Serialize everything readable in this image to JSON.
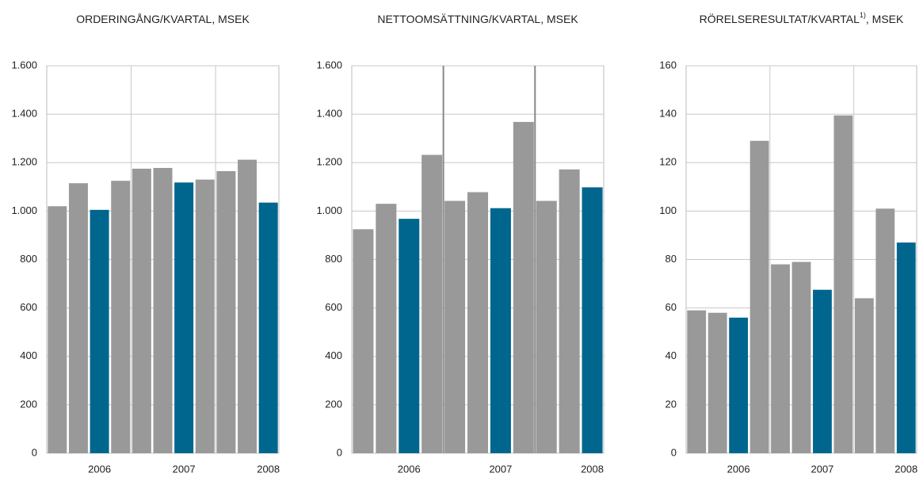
{
  "chart_data": [
    {
      "type": "bar",
      "title": "ORDERINGÅNG/KVARTAL, MSEK",
      "categories": [
        null,
        null,
        "2006",
        null,
        null,
        null,
        "2007",
        null,
        null,
        null,
        "2008"
      ],
      "values": [
        1020,
        1115,
        1005,
        1125,
        1175,
        1178,
        1118,
        1130,
        1165,
        1212,
        1035
      ],
      "colors": [
        "#999999",
        "#999999",
        "#00668e",
        "#999999",
        "#999999",
        "#999999",
        "#00668e",
        "#999999",
        "#999999",
        "#999999",
        "#00668e"
      ],
      "ylim": [
        0,
        1600
      ],
      "yticks": [
        0,
        200,
        400,
        600,
        800,
        {
          "value": 1000,
          "label": "1.000"
        },
        {
          "value": 1200,
          "label": "1.200"
        },
        {
          "value": 1400,
          "label": "1.400"
        },
        {
          "value": 1600,
          "label": "1.600"
        }
      ],
      "grid": true
    },
    {
      "type": "bar",
      "title": "NETTOOMSÄTTNING/KVARTAL, MSEK",
      "categories": [
        null,
        null,
        "2006",
        null,
        null,
        null,
        "2007",
        null,
        null,
        null,
        "2008"
      ],
      "values": [
        925,
        1030,
        968,
        1232,
        1042,
        1078,
        1012,
        1368,
        1042,
        1172,
        1098
      ],
      "colors": [
        "#999999",
        "#999999",
        "#00668e",
        "#999999",
        "#999999",
        "#999999",
        "#00668e",
        "#999999",
        "#999999",
        "#999999",
        "#00668e"
      ],
      "ylim": [
        0,
        1600
      ],
      "yticks": [
        0,
        200,
        400,
        600,
        800,
        {
          "value": 1000,
          "label": "1.000"
        },
        {
          "value": 1200,
          "label": "1.200"
        },
        {
          "value": 1400,
          "label": "1.400"
        },
        {
          "value": 1600,
          "label": "1.600"
        }
      ],
      "grid": true
    },
    {
      "type": "bar",
      "title": "RÖRELSERESULTAT/KVARTAL",
      "title_note": "1)",
      "title_unit": ", MSEK",
      "categories": [
        null,
        null,
        "2006",
        null,
        null,
        null,
        "2007",
        null,
        null,
        null,
        "2008"
      ],
      "values": [
        59,
        58,
        56,
        129,
        78,
        79,
        67.5,
        139.5,
        64,
        101,
        87
      ],
      "colors": [
        "#999999",
        "#999999",
        "#00668e",
        "#999999",
        "#999999",
        "#999999",
        "#00668e",
        "#999999",
        "#999999",
        "#999999",
        "#00668e"
      ],
      "ylim": [
        0,
        160
      ],
      "yticks": [
        0,
        20,
        40,
        60,
        80,
        100,
        120,
        140,
        160
      ],
      "grid": true
    }
  ]
}
